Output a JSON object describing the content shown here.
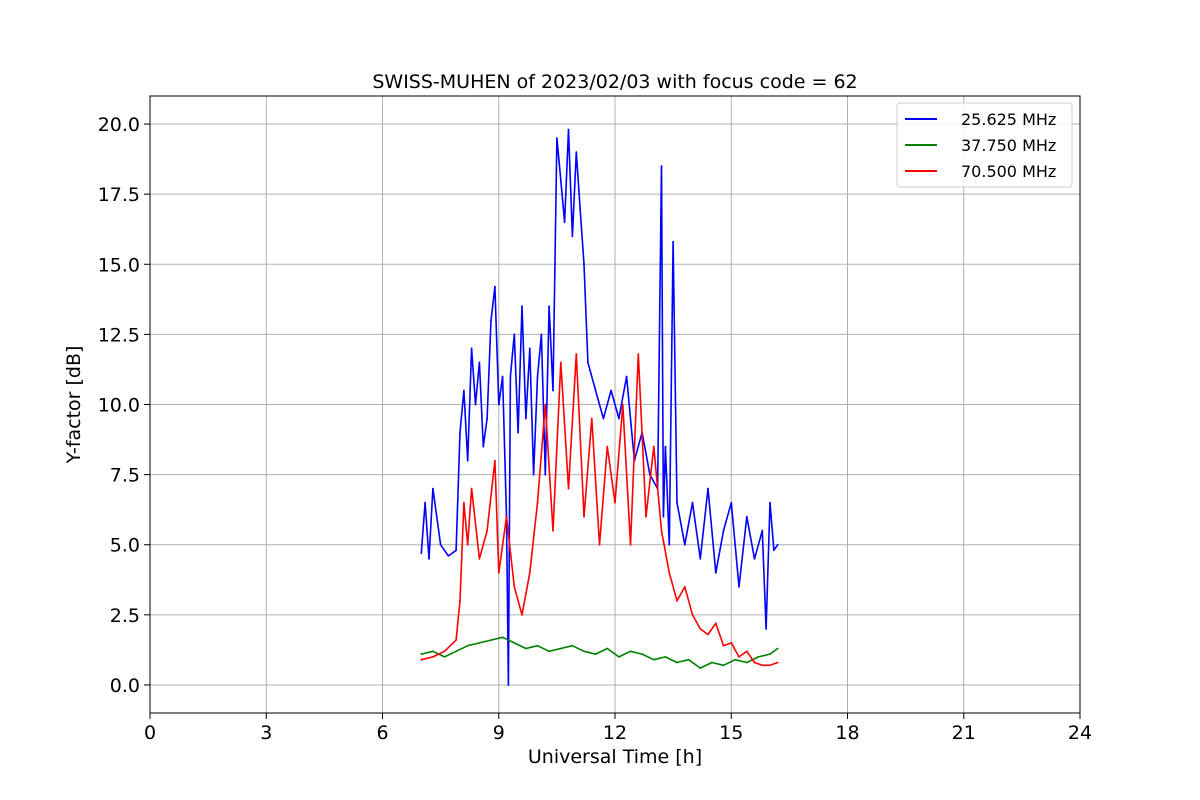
{
  "chart_data": {
    "type": "line",
    "title": "SWISS-MUHEN of 2023/02/03 with focus code = 62",
    "xlabel": "Universal Time [h]",
    "ylabel": "Y-factor [dB]",
    "xlim": [
      0,
      24
    ],
    "ylim": [
      -1.0,
      21.0
    ],
    "xticks": [
      0,
      3,
      6,
      9,
      12,
      15,
      18,
      21,
      24
    ],
    "xtick_labels": [
      "0",
      "3",
      "6",
      "9",
      "12",
      "15",
      "18",
      "21",
      "24"
    ],
    "yticks": [
      0,
      2.5,
      5,
      7.5,
      10,
      12.5,
      15,
      17.5,
      20
    ],
    "ytick_labels": [
      "0.0",
      "2.5",
      "5.0",
      "7.5",
      "10.0",
      "12.5",
      "15.0",
      "17.5",
      "20.0"
    ],
    "grid": true,
    "legend_position": "top-right",
    "series": [
      {
        "name": "25.625 MHz",
        "color": "#0000ff",
        "x": [
          7.0,
          7.1,
          7.2,
          7.3,
          7.5,
          7.7,
          7.9,
          8.0,
          8.1,
          8.2,
          8.3,
          8.4,
          8.5,
          8.6,
          8.7,
          8.8,
          8.9,
          9.0,
          9.1,
          9.2,
          9.25,
          9.3,
          9.4,
          9.5,
          9.6,
          9.7,
          9.8,
          9.9,
          10.0,
          10.1,
          10.2,
          10.3,
          10.4,
          10.5,
          10.6,
          10.7,
          10.8,
          10.9,
          11.0,
          11.1,
          11.2,
          11.3,
          11.5,
          11.7,
          11.9,
          12.1,
          12.3,
          12.5,
          12.7,
          12.9,
          13.1,
          13.2,
          13.25,
          13.3,
          13.4,
          13.5,
          13.6,
          13.8,
          14.0,
          14.2,
          14.4,
          14.6,
          14.8,
          15.0,
          15.2,
          15.4,
          15.6,
          15.8,
          15.9,
          16.0,
          16.1,
          16.2
        ],
        "y": [
          4.7,
          6.5,
          4.5,
          7.0,
          5.0,
          4.6,
          4.8,
          9.0,
          10.5,
          8.0,
          12.0,
          10.0,
          11.5,
          8.5,
          9.5,
          13.0,
          14.2,
          10.0,
          11.0,
          6.0,
          0.0,
          11.0,
          12.5,
          9.0,
          13.5,
          9.5,
          12.0,
          7.5,
          11.0,
          12.5,
          7.5,
          13.5,
          10.5,
          19.5,
          18.0,
          16.5,
          19.8,
          16.0,
          19.0,
          17.0,
          15.0,
          11.5,
          10.5,
          9.5,
          10.5,
          9.5,
          11.0,
          8.0,
          9.0,
          7.5,
          7.0,
          18.5,
          6.0,
          8.5,
          5.0,
          15.8,
          6.5,
          5.0,
          6.5,
          4.5,
          7.0,
          4.0,
          5.5,
          6.5,
          3.5,
          6.0,
          4.5,
          5.5,
          2.0,
          6.5,
          4.8,
          5.0
        ]
      },
      {
        "name": "37.750 MHz",
        "color": "#008000",
        "x": [
          7.0,
          7.3,
          7.6,
          7.9,
          8.2,
          8.5,
          8.8,
          9.1,
          9.4,
          9.7,
          10.0,
          10.3,
          10.6,
          10.9,
          11.2,
          11.5,
          11.8,
          12.1,
          12.4,
          12.7,
          13.0,
          13.3,
          13.6,
          13.9,
          14.2,
          14.5,
          14.8,
          15.1,
          15.4,
          15.7,
          16.0,
          16.2
        ],
        "y": [
          1.1,
          1.2,
          1.0,
          1.2,
          1.4,
          1.5,
          1.6,
          1.7,
          1.5,
          1.3,
          1.4,
          1.2,
          1.3,
          1.4,
          1.2,
          1.1,
          1.3,
          1.0,
          1.2,
          1.1,
          0.9,
          1.0,
          0.8,
          0.9,
          0.6,
          0.8,
          0.7,
          0.9,
          0.8,
          1.0,
          1.1,
          1.3
        ]
      },
      {
        "name": "70.500 MHz",
        "color": "#ff0000",
        "x": [
          7.0,
          7.3,
          7.6,
          7.9,
          8.0,
          8.1,
          8.2,
          8.3,
          8.5,
          8.7,
          8.9,
          9.0,
          9.2,
          9.4,
          9.6,
          9.8,
          10.0,
          10.2,
          10.4,
          10.6,
          10.8,
          11.0,
          11.2,
          11.4,
          11.6,
          11.8,
          12.0,
          12.2,
          12.4,
          12.6,
          12.8,
          13.0,
          13.2,
          13.4,
          13.6,
          13.8,
          14.0,
          14.2,
          14.4,
          14.6,
          14.8,
          15.0,
          15.2,
          15.4,
          15.6,
          15.8,
          16.0,
          16.2
        ],
        "y": [
          0.9,
          1.0,
          1.2,
          1.6,
          3.0,
          6.5,
          5.0,
          7.0,
          4.5,
          5.5,
          8.0,
          4.0,
          6.0,
          3.5,
          2.5,
          4.0,
          6.5,
          10.0,
          5.5,
          11.5,
          7.0,
          11.8,
          6.0,
          9.5,
          5.0,
          8.5,
          6.5,
          10.0,
          5.0,
          11.8,
          6.0,
          8.5,
          5.5,
          4.0,
          3.0,
          3.5,
          2.5,
          2.0,
          1.8,
          2.2,
          1.4,
          1.5,
          1.0,
          1.2,
          0.8,
          0.7,
          0.7,
          0.8
        ]
      }
    ]
  }
}
